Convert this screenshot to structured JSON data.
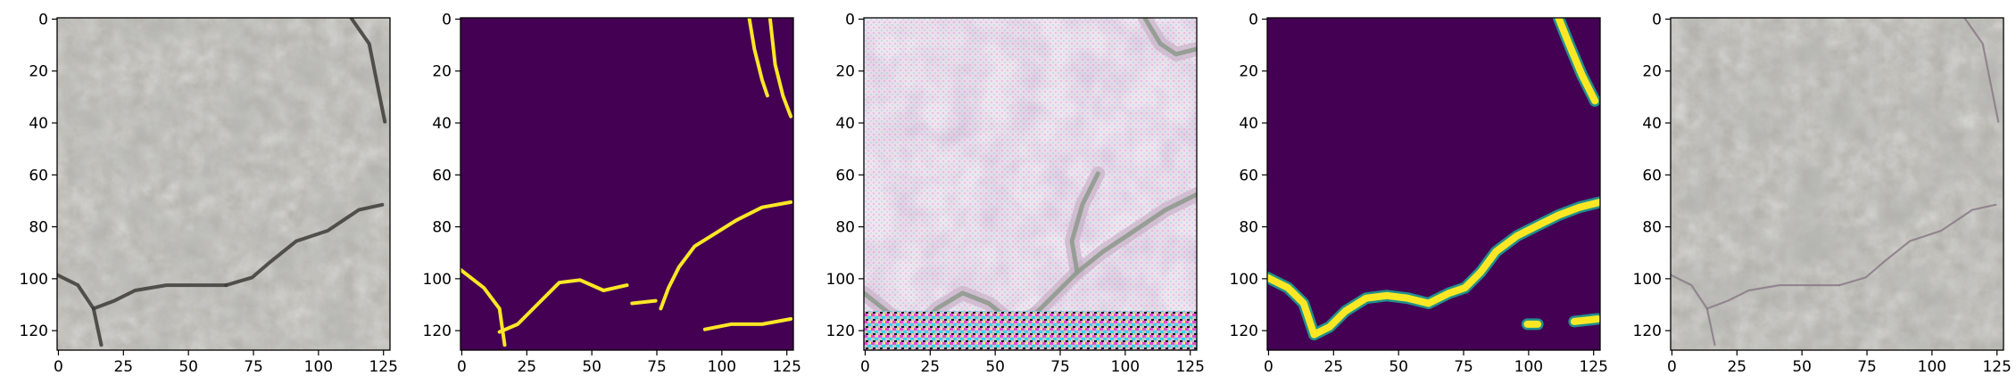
{
  "figure": {
    "panel_count": 5
  },
  "chart_data": [
    {
      "type": "image",
      "title": "",
      "xlabel": "",
      "ylabel": "",
      "image_size": [
        128,
        128
      ],
      "xlim": [
        0,
        128
      ],
      "ylim": [
        128,
        0
      ],
      "x_ticks": [
        0,
        25,
        50,
        75,
        100,
        125
      ],
      "y_ticks": [
        0,
        20,
        40,
        60,
        80,
        100,
        120
      ],
      "x_tick_labels": [
        "0",
        "25",
        "50",
        "75",
        "100",
        "125"
      ],
      "y_tick_labels": [
        "0",
        "20",
        "40",
        "60",
        "80",
        "100",
        "120"
      ],
      "content": "photo",
      "colors": {
        "base": "#b7b6b0",
        "crack": "#3c3b36"
      },
      "cracks": [
        [
          [
            0,
            99
          ],
          [
            8,
            103
          ],
          [
            14,
            112
          ],
          [
            17,
            126
          ]
        ],
        [
          [
            14,
            112
          ],
          [
            22,
            109
          ],
          [
            30,
            105
          ],
          [
            42,
            103
          ],
          [
            52,
            103
          ],
          [
            65,
            103
          ]
        ],
        [
          [
            65,
            103
          ],
          [
            75,
            100
          ],
          [
            82,
            94
          ],
          [
            92,
            86
          ],
          [
            104,
            82
          ],
          [
            116,
            74
          ],
          [
            125,
            72
          ]
        ],
        [
          [
            113,
            0
          ],
          [
            120,
            10
          ],
          [
            123,
            25
          ],
          [
            126,
            40
          ]
        ]
      ]
    },
    {
      "type": "image",
      "title": "",
      "xlabel": "",
      "ylabel": "",
      "image_size": [
        128,
        128
      ],
      "xlim": [
        0,
        128
      ],
      "ylim": [
        128,
        0
      ],
      "x_ticks": [
        0,
        25,
        50,
        75,
        100,
        125
      ],
      "y_ticks": [
        0,
        20,
        40,
        60,
        80,
        100,
        120
      ],
      "x_tick_labels": [
        "0",
        "25",
        "50",
        "75",
        "100",
        "125"
      ],
      "y_tick_labels": [
        "0",
        "20",
        "40",
        "60",
        "80",
        "100",
        "120"
      ],
      "content": "mask",
      "colors": {
        "base": "#440154",
        "crack": "#fde725"
      },
      "cracks": [
        [
          [
            0,
            97
          ],
          [
            9,
            104
          ],
          [
            15,
            112
          ],
          [
            17,
            126
          ]
        ],
        [
          [
            15,
            121
          ],
          [
            22,
            118
          ],
          [
            30,
            110
          ],
          [
            38,
            102
          ],
          [
            46,
            101
          ],
          [
            55,
            105
          ],
          [
            64,
            103
          ]
        ],
        [
          [
            66,
            110
          ],
          [
            75,
            109
          ]
        ],
        [
          [
            77,
            112
          ],
          [
            80,
            104
          ],
          [
            84,
            96
          ],
          [
            90,
            88
          ],
          [
            98,
            83
          ],
          [
            106,
            78
          ],
          [
            116,
            73
          ],
          [
            127,
            71
          ]
        ],
        [
          [
            94,
            120
          ],
          [
            104,
            118
          ],
          [
            116,
            118
          ],
          [
            127,
            116
          ]
        ],
        [
          [
            111,
            0
          ],
          [
            113,
            12
          ],
          [
            116,
            24
          ],
          [
            118,
            30
          ]
        ],
        [
          [
            119,
            0
          ],
          [
            121,
            18
          ],
          [
            124,
            30
          ],
          [
            127,
            38
          ]
        ]
      ]
    },
    {
      "type": "image",
      "title": "",
      "xlabel": "",
      "ylabel": "",
      "image_size": [
        128,
        128
      ],
      "xlim": [
        0,
        128
      ],
      "ylim": [
        128,
        0
      ],
      "x_ticks": [
        0,
        25,
        50,
        75,
        100,
        125
      ],
      "y_ticks": [
        0,
        20,
        40,
        60,
        80,
        100,
        120
      ],
      "x_tick_labels": [
        "0",
        "25",
        "50",
        "75",
        "100",
        "125"
      ],
      "y_tick_labels": [
        "0",
        "20",
        "40",
        "60",
        "80",
        "100",
        "120"
      ],
      "content": "reconstruction",
      "colors": {
        "base": "#efe6ee",
        "crack": "#8f9a8e",
        "noise_a": "#e04ad8",
        "noise_b": "#3ad0e8"
      },
      "cracks": [
        [
          [
            0,
            106
          ],
          [
            10,
            114
          ],
          [
            20,
            120
          ],
          [
            32,
            124
          ]
        ],
        [
          [
            20,
            120
          ],
          [
            28,
            112
          ],
          [
            38,
            106
          ],
          [
            48,
            110
          ],
          [
            58,
            118
          ],
          [
            66,
            114
          ]
        ],
        [
          [
            66,
            114
          ],
          [
            74,
            106
          ],
          [
            82,
            98
          ],
          [
            92,
            90
          ],
          [
            104,
            82
          ],
          [
            116,
            74
          ],
          [
            128,
            68
          ]
        ],
        [
          [
            82,
            98
          ],
          [
            80,
            86
          ],
          [
            84,
            72
          ],
          [
            90,
            60
          ]
        ],
        [
          [
            108,
            0
          ],
          [
            114,
            10
          ],
          [
            120,
            14
          ],
          [
            128,
            12
          ]
        ]
      ]
    },
    {
      "type": "image",
      "title": "",
      "xlabel": "",
      "ylabel": "",
      "image_size": [
        128,
        128
      ],
      "xlim": [
        0,
        128
      ],
      "ylim": [
        128,
        0
      ],
      "x_ticks": [
        0,
        25,
        50,
        75,
        100,
        125
      ],
      "y_ticks": [
        0,
        20,
        40,
        60,
        80,
        100,
        120
      ],
      "x_tick_labels": [
        "0",
        "25",
        "50",
        "75",
        "100",
        "125"
      ],
      "y_tick_labels": [
        "0",
        "20",
        "40",
        "60",
        "80",
        "100",
        "120"
      ],
      "content": "prediction",
      "colors": {
        "base": "#440154",
        "crack": "#fde725",
        "edge": "#21918c"
      },
      "cracks": [
        [
          [
            0,
            100
          ],
          [
            8,
            104
          ],
          [
            14,
            110
          ],
          [
            18,
            122
          ]
        ],
        [
          [
            18,
            122
          ],
          [
            24,
            119
          ],
          [
            30,
            113
          ],
          [
            38,
            108
          ],
          [
            46,
            107
          ],
          [
            54,
            108
          ],
          [
            62,
            110
          ],
          [
            70,
            106
          ],
          [
            76,
            104
          ],
          [
            82,
            98
          ]
        ],
        [
          [
            82,
            98
          ],
          [
            88,
            90
          ],
          [
            96,
            84
          ],
          [
            104,
            80
          ],
          [
            112,
            76
          ],
          [
            120,
            73
          ],
          [
            128,
            71
          ]
        ],
        [
          [
            112,
            0
          ],
          [
            116,
            10
          ],
          [
            121,
            22
          ],
          [
            126,
            32
          ]
        ],
        [
          [
            100,
            118
          ],
          [
            104,
            118
          ]
        ],
        [
          [
            118,
            117
          ],
          [
            127,
            116
          ]
        ]
      ]
    },
    {
      "type": "image",
      "title": "",
      "xlabel": "",
      "ylabel": "",
      "image_size": [
        128,
        128
      ],
      "xlim": [
        0,
        128
      ],
      "ylim": [
        128,
        0
      ],
      "x_ticks": [
        0,
        25,
        50,
        75,
        100,
        125
      ],
      "y_ticks": [
        0,
        20,
        40,
        60,
        80,
        100,
        120
      ],
      "x_tick_labels": [
        "0",
        "25",
        "50",
        "75",
        "100",
        "125"
      ],
      "y_tick_labels": [
        "0",
        "20",
        "40",
        "60",
        "80",
        "100",
        "120"
      ],
      "content": "overlay",
      "colors": {
        "base": "#b5b4ae",
        "crack": "#8a7f78"
      },
      "cracks": [
        [
          [
            0,
            99
          ],
          [
            8,
            103
          ],
          [
            14,
            112
          ],
          [
            17,
            126
          ]
        ],
        [
          [
            14,
            112
          ],
          [
            22,
            109
          ],
          [
            30,
            105
          ],
          [
            42,
            103
          ],
          [
            52,
            103
          ],
          [
            65,
            103
          ]
        ],
        [
          [
            65,
            103
          ],
          [
            75,
            100
          ],
          [
            82,
            94
          ],
          [
            92,
            86
          ],
          [
            104,
            82
          ],
          [
            116,
            74
          ],
          [
            125,
            72
          ]
        ],
        [
          [
            113,
            0
          ],
          [
            120,
            10
          ],
          [
            123,
            25
          ],
          [
            126,
            40
          ]
        ]
      ]
    }
  ]
}
